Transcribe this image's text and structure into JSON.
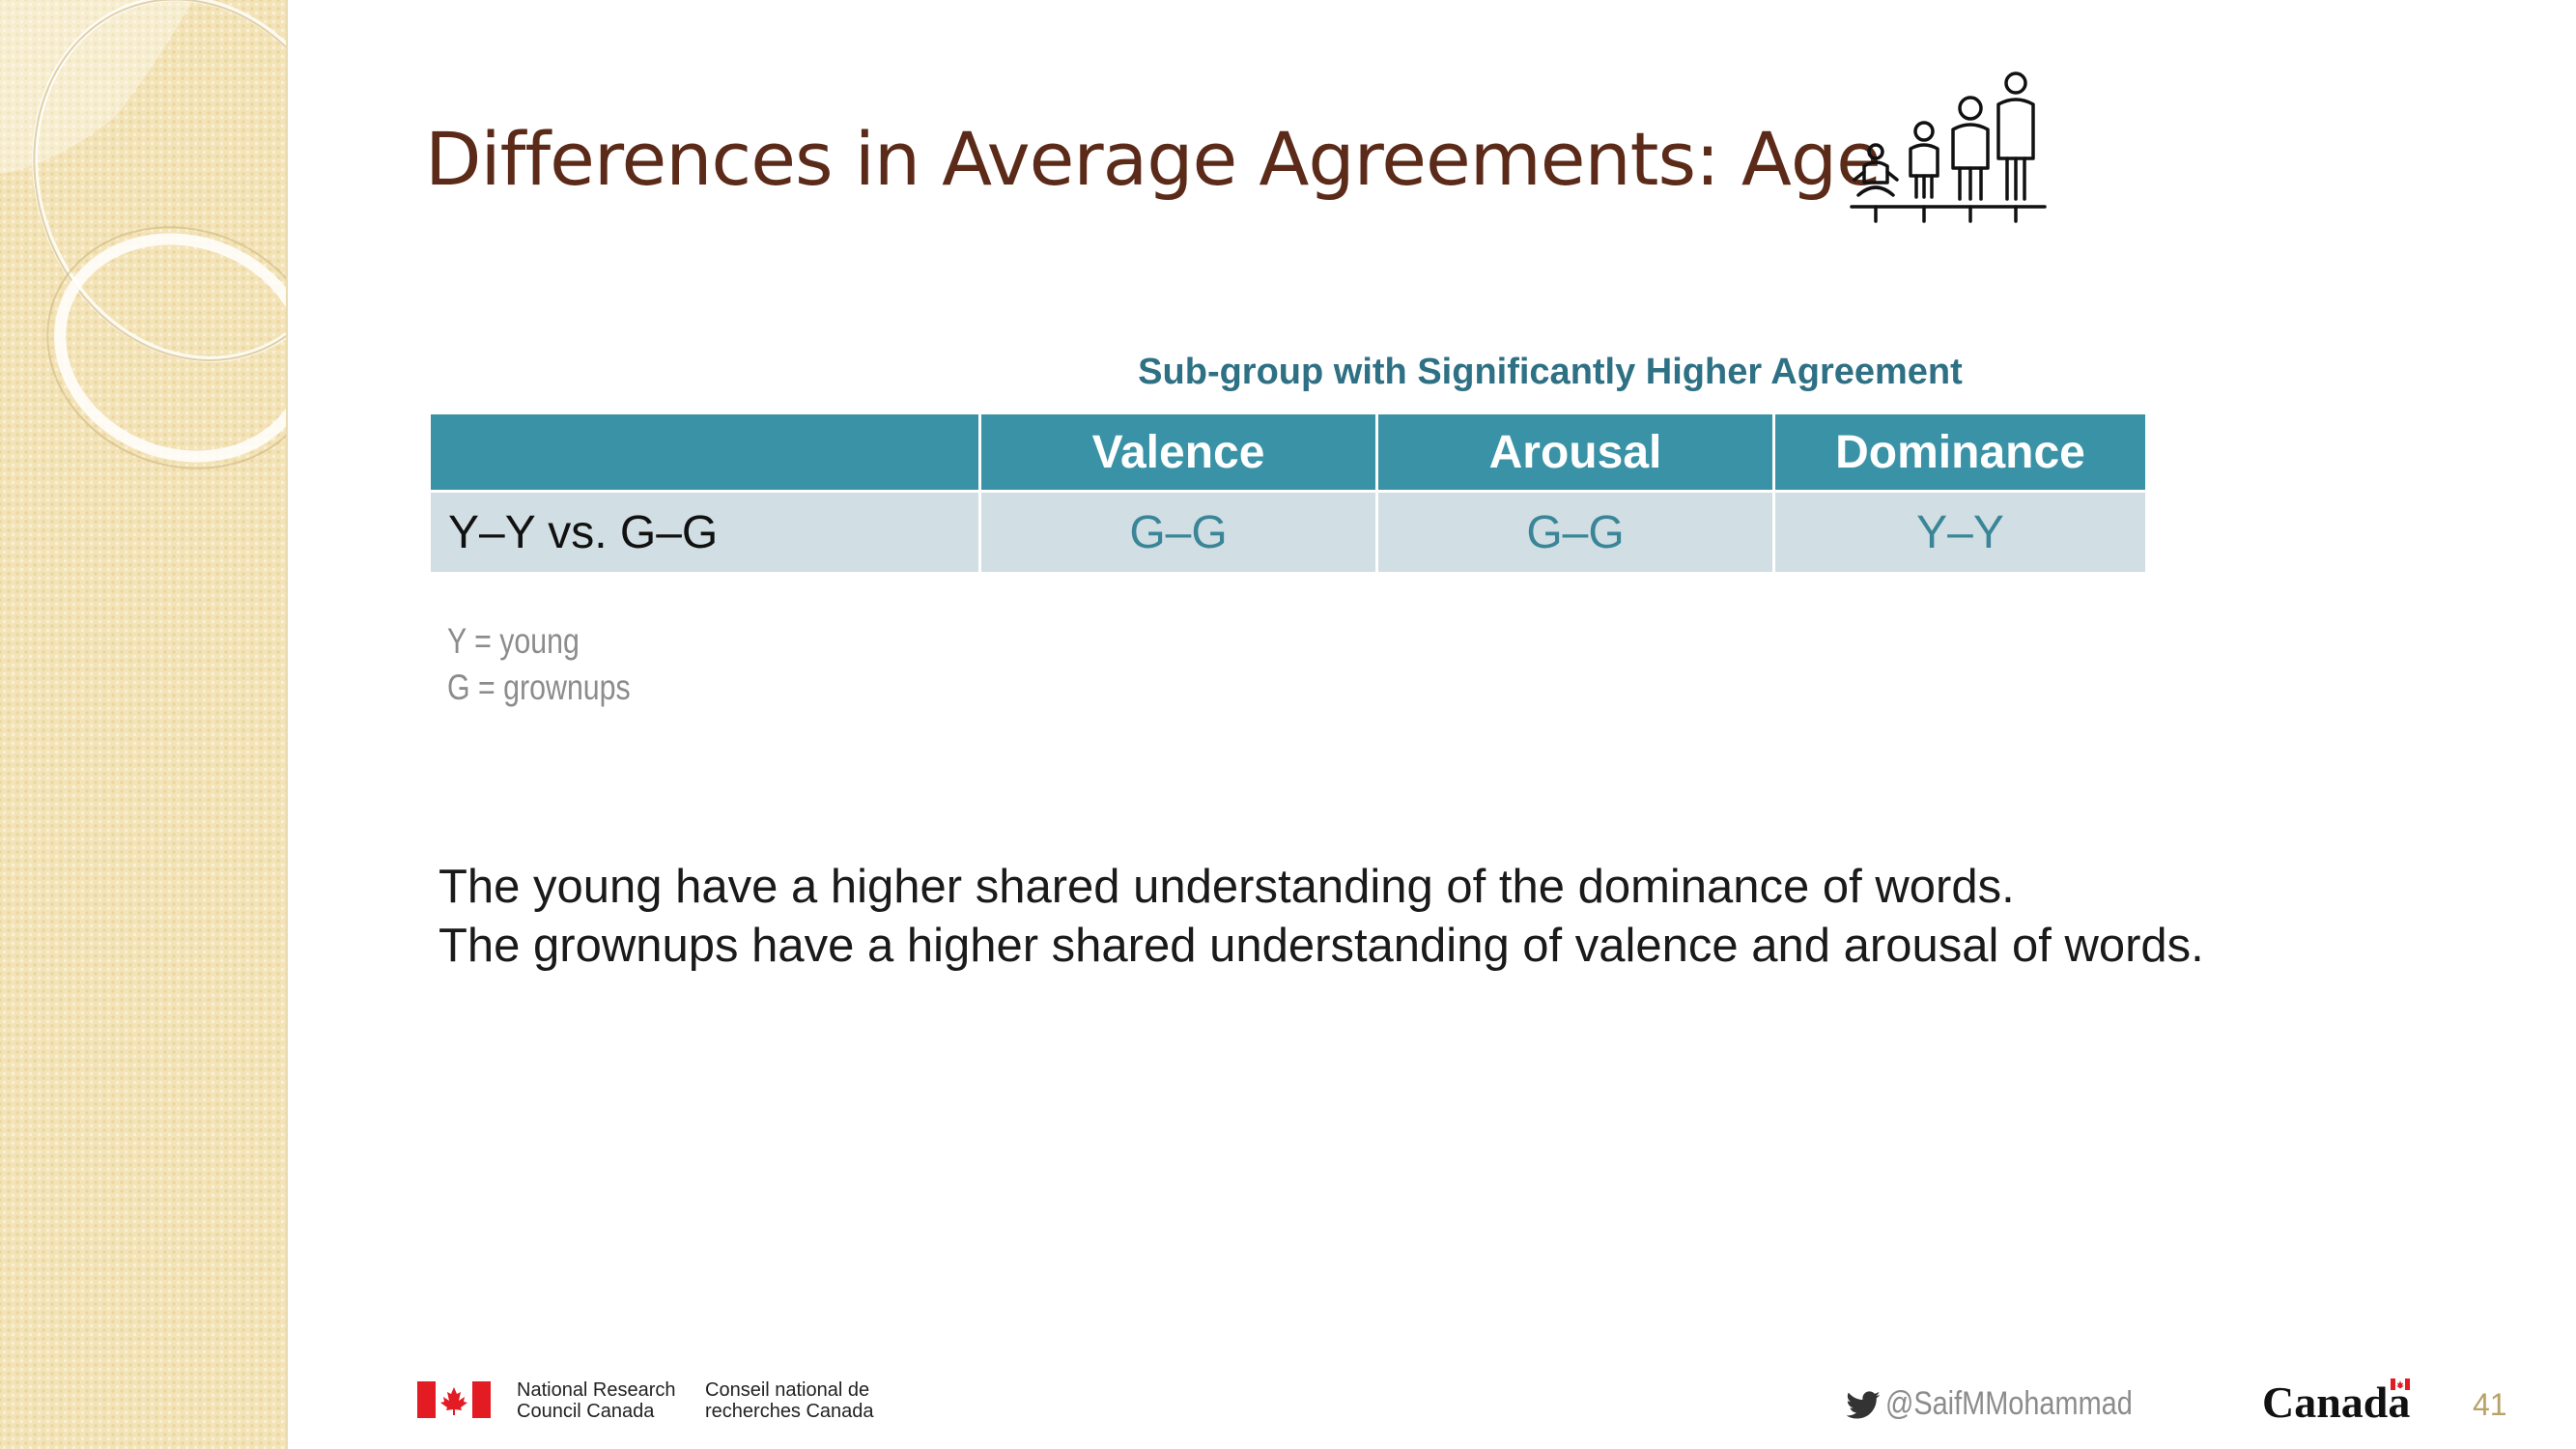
{
  "slide": {
    "title": "Differences in Average Agreements: Age",
    "title_icon": "family-ages-icon",
    "table_caption": "Sub-group with Significantly Higher Agreement",
    "table": {
      "columns": [
        "",
        "Valence",
        "Arousal",
        "Dominance"
      ],
      "rows": [
        {
          "label": "Y–Y vs. G–G",
          "valence": "G–G",
          "arousal": "G–G",
          "dominance": "Y–Y"
        }
      ]
    },
    "legend": [
      "Y = young",
      "G = grownups"
    ],
    "findings": [
      "The young have a higher shared understanding of the dominance of words.",
      "The grownups have a higher shared understanding of valence and arousal of words."
    ],
    "page_number": "41"
  },
  "footer": {
    "nrc_en": [
      "National Research",
      "Council Canada"
    ],
    "nrc_fr": [
      "Conseil national de",
      "recherches Canada"
    ],
    "twitter_handle": "@SaifMMohammad",
    "wordmark": "Canada"
  },
  "colors": {
    "title": "#5b2a18",
    "accent_teal": "#3a92a6",
    "table_row": "#d1dee3",
    "caption": "#2e7084",
    "sidebar": "#f3e3b6"
  }
}
